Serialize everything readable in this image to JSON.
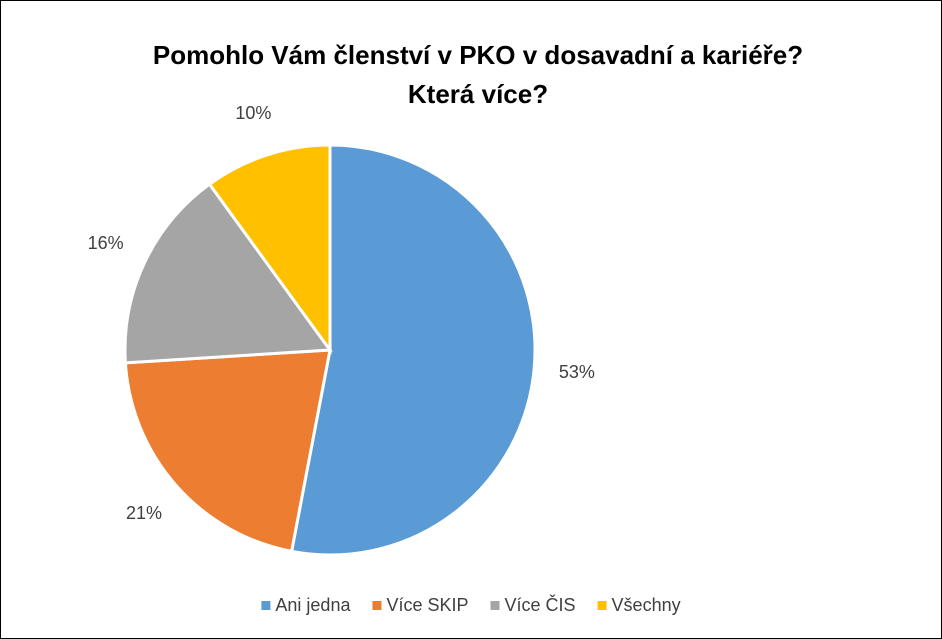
{
  "chart_data": {
    "type": "pie",
    "title": [
      "Pomohlo Vám členství v PKO v dosavadní a kariéře?",
      "Která více?"
    ],
    "categories": [
      "Ani jedna",
      "Více SKIP",
      "Více ČIS",
      "Všechny"
    ],
    "values": [
      53,
      21,
      16,
      10
    ],
    "value_labels": [
      "53%",
      "21%",
      "16%",
      "10%"
    ],
    "colors": [
      "#5b9bd5",
      "#ed7d31",
      "#a5a5a5",
      "#ffc000"
    ],
    "legend": "bottom"
  }
}
